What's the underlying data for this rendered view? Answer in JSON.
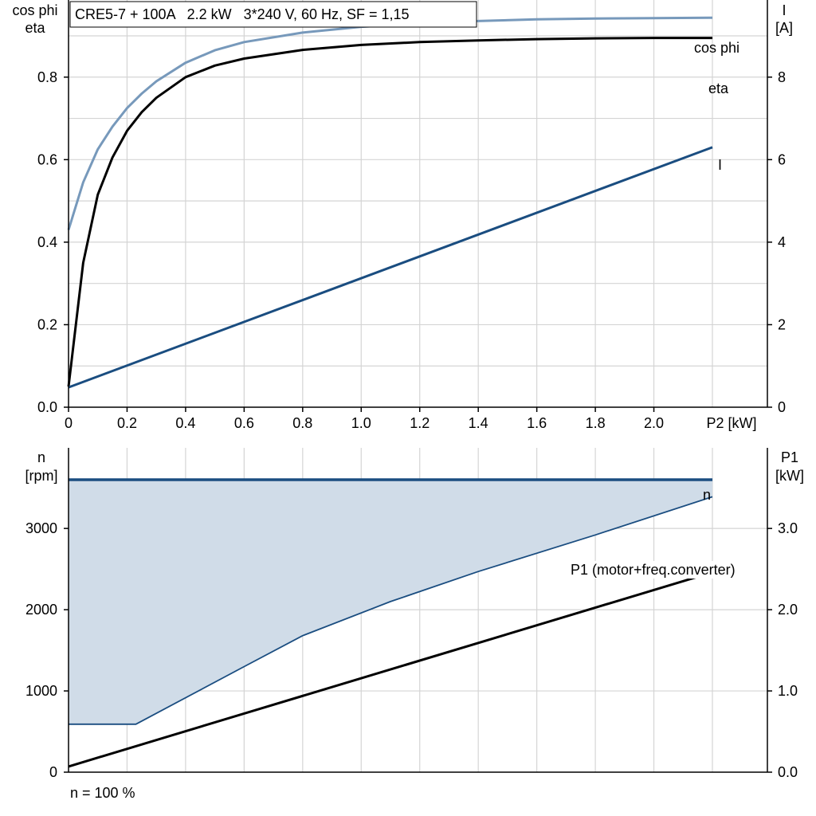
{
  "chart_data": [
    {
      "type": "line",
      "title": "CRE5-7 + 100A   2.2 kW   3*240 V, 60 Hz, SF = 1,15",
      "ylabel_left_1": "cos phi",
      "ylabel_left_2": "eta",
      "ylabel_right_1": "I",
      "ylabel_right_2": "[A]",
      "xlabel": "P2 [kW]",
      "xlim": [
        0,
        2.2
      ],
      "ylim_left": [
        0,
        1.0
      ],
      "ylim_right": [
        0,
        10
      ],
      "x_ticks": [
        0,
        0.2,
        0.4,
        0.6,
        0.8,
        1.0,
        1.2,
        1.4,
        1.6,
        1.8,
        2.0
      ],
      "x_tick_labels": [
        "0",
        "0.2",
        "0.4",
        "0.6",
        "0.8",
        "1.0",
        "1.2",
        "1.4",
        "1.6",
        "1.8",
        "2.0"
      ],
      "y_left_ticks": [
        0,
        0.2,
        0.4,
        0.6,
        0.8
      ],
      "y_left_tick_labels": [
        "0.0",
        "0.2",
        "0.4",
        "0.6",
        "0.8"
      ],
      "y_right_ticks": [
        0,
        2,
        4,
        6,
        8
      ],
      "y_right_tick_labels": [
        "0",
        "2",
        "4",
        "6",
        "8"
      ],
      "grid": true,
      "series": [
        {
          "name": "cos phi",
          "axis": "left",
          "color": "#7799bb",
          "x": [
            0,
            0.05,
            0.1,
            0.15,
            0.2,
            0.25,
            0.3,
            0.4,
            0.5,
            0.6,
            0.8,
            1.0,
            1.2,
            1.4,
            1.6,
            1.8,
            2.0,
            2.2
          ],
          "y": [
            0.43,
            0.545,
            0.625,
            0.68,
            0.725,
            0.76,
            0.79,
            0.835,
            0.865,
            0.885,
            0.908,
            0.922,
            0.93,
            0.936,
            0.94,
            0.942,
            0.943,
            0.944
          ]
        },
        {
          "name": "eta",
          "axis": "left",
          "color": "#000000",
          "x": [
            0,
            0.025,
            0.05,
            0.1,
            0.15,
            0.2,
            0.25,
            0.3,
            0.4,
            0.5,
            0.6,
            0.8,
            1.0,
            1.2,
            1.4,
            1.6,
            1.8,
            2.0,
            2.2
          ],
          "y": [
            0.05,
            0.2,
            0.35,
            0.515,
            0.605,
            0.67,
            0.715,
            0.75,
            0.8,
            0.828,
            0.845,
            0.866,
            0.878,
            0.885,
            0.889,
            0.892,
            0.894,
            0.895,
            0.895
          ]
        },
        {
          "name": "I",
          "axis": "right",
          "color": "#1a4d80",
          "x": [
            0,
            2.2
          ],
          "y": [
            0.48,
            6.3
          ]
        }
      ]
    },
    {
      "type": "area",
      "ylabel_left_1": "n",
      "ylabel_left_2": "[rpm]",
      "ylabel_right_1": "P1",
      "ylabel_right_2": "[kW]",
      "footnote": "n = 100 %",
      "xlim": [
        0,
        2.2
      ],
      "ylim_left": [
        0,
        3950
      ],
      "ylim_right": [
        0,
        3.95
      ],
      "y_left_ticks": [
        0,
        1000,
        2000,
        3000
      ],
      "y_left_tick_labels": [
        "0",
        "1000",
        "2000",
        "3000"
      ],
      "y_right_ticks": [
        0,
        1.0,
        2.0,
        3.0
      ],
      "y_right_tick_labels": [
        "0.0",
        "1.0",
        "2.0",
        "3.0"
      ],
      "grid": true,
      "series": [
        {
          "name": "n",
          "axis": "left",
          "color": "#1a4d80",
          "fill": "#d0dce8",
          "x": [
            0,
            2.2
          ],
          "y": [
            3600,
            3600
          ],
          "lower": {
            "x": [
              0,
              0.23,
              0.6,
              0.8,
              1.1,
              1.4,
              1.8,
              2.2
            ],
            "y": [
              590,
              590,
              1300,
              1680,
              2100,
              2470,
              2920,
              3390
            ]
          }
        },
        {
          "name": "P1 (motor+freq.converter)",
          "axis": "right",
          "color": "#000000",
          "x": [
            0,
            2.2
          ],
          "y": [
            0.07,
            2.46
          ]
        }
      ]
    }
  ]
}
